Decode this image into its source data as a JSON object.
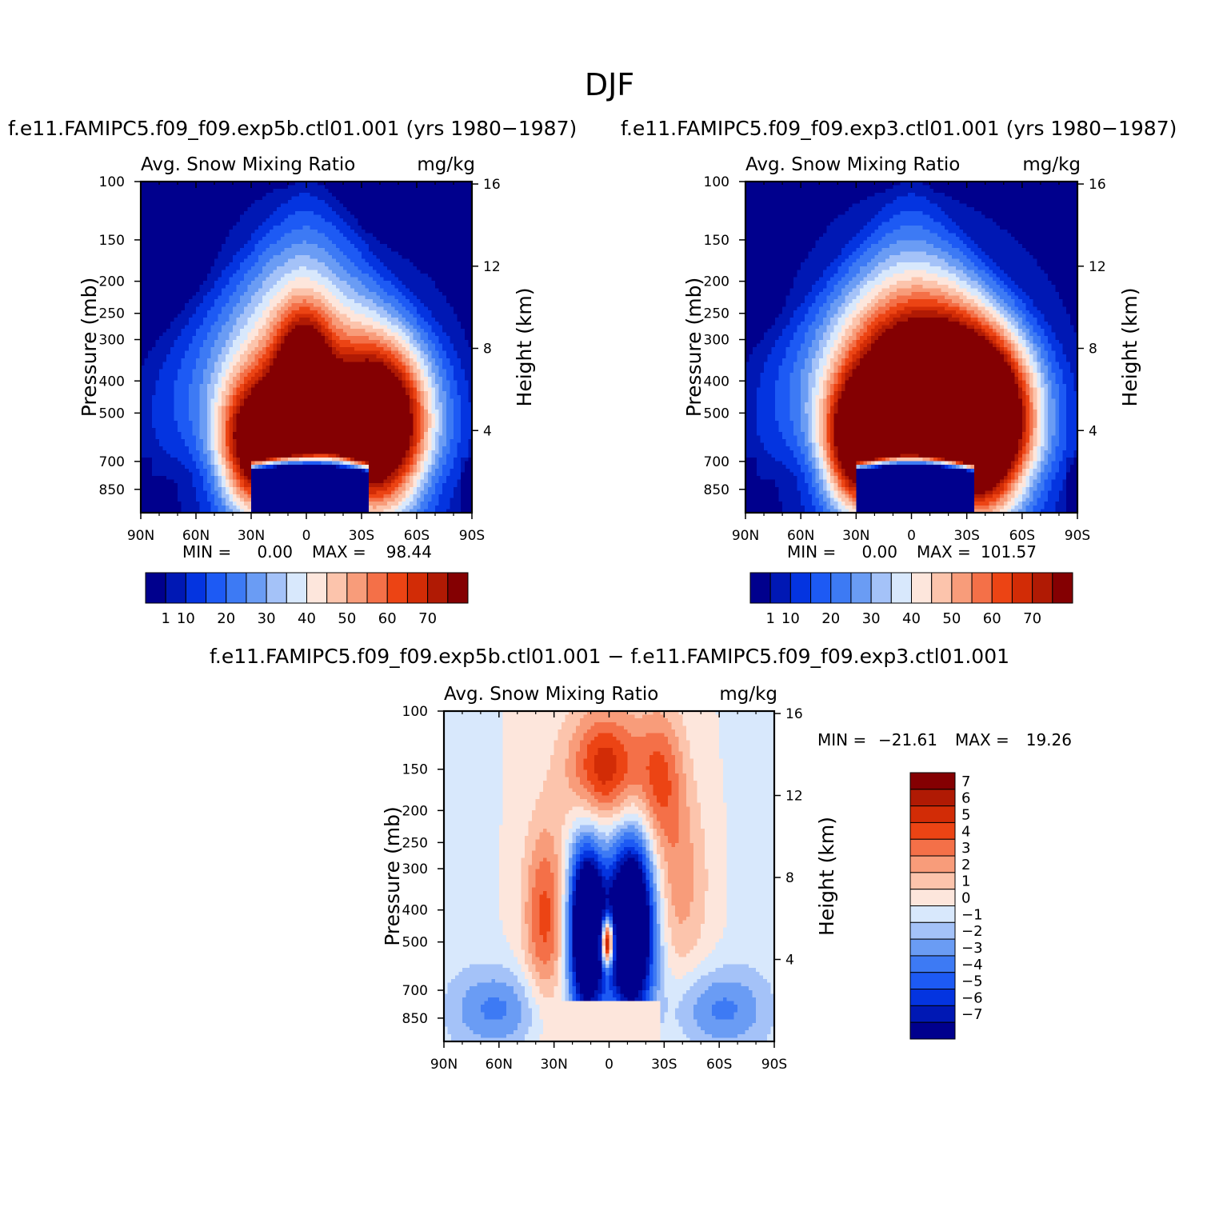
{
  "figure": {
    "title": "DJF",
    "panel_left_case": "f.e11.FAMIPC5.f09_f09.exp5b.ctl01.001 (yrs 1980−1987)",
    "panel_right_case": "f.e11.FAMIPC5.f09_f09.exp3.ctl01.001 (yrs 1980−1987)",
    "diff_case": "f.e11.FAMIPC5.f09_f09.exp5b.ctl01.001 − f.e11.FAMIPC5.f09_f09.exp3.ctl01.001"
  },
  "chart_data": [
    {
      "id": "exp5b",
      "type": "heatmap",
      "title": "Avg. Snow Mixing Ratio",
      "units": "mg/kg",
      "xlabel": "",
      "ylabel": "Pressure (mb)",
      "ylabel_right": "Height (km)",
      "x_ticks": [
        "90N",
        "60N",
        "30N",
        "0",
        "30S",
        "60S",
        "90S"
      ],
      "x_range": [
        90,
        -90
      ],
      "y_ticks": [
        100,
        150,
        200,
        250,
        300,
        400,
        500,
        700,
        850
      ],
      "y_range": [
        100,
        1000
      ],
      "height_ticks": [
        16,
        12,
        8,
        4
      ],
      "min_label": "MIN =",
      "min_value": "0.00",
      "max_label": "MAX =",
      "max_value": "98.44",
      "colorbar_levels": [
        "1",
        "10",
        "20",
        "30",
        "40",
        "50",
        "60",
        "70"
      ],
      "colors": [
        "#00008d",
        "#0018b4",
        "#0434e0",
        "#1d5af4",
        "#3d7af4",
        "#6a9cf4",
        "#a4c2f8",
        "#d8e8fc",
        "#fde6dc",
        "#fcc4ac",
        "#f89c7a",
        "#f47048",
        "#ec4414",
        "#d22c06",
        "#b01a04",
        "#840002"
      ],
      "blobs": [
        {
          "lat": 27,
          "p": 640,
          "slat": 15,
          "sp": 210,
          "v": 75
        },
        {
          "lat": -38,
          "p": 570,
          "slat": 19,
          "sp": 230,
          "v": 100
        },
        {
          "lat": 1,
          "p": 430,
          "slat": 10,
          "sp": 150,
          "v": 64
        },
        {
          "lat": 6,
          "p": 460,
          "slat": 22,
          "sp": 260,
          "v": 32
        }
      ]
    },
    {
      "id": "exp3",
      "type": "heatmap",
      "title": "Avg. Snow Mixing Ratio",
      "units": "mg/kg",
      "xlabel": "",
      "ylabel": "Pressure (mb)",
      "ylabel_right": "Height (km)",
      "x_ticks": [
        "90N",
        "60N",
        "30N",
        "0",
        "30S",
        "60S",
        "90S"
      ],
      "x_range": [
        90,
        -90
      ],
      "y_ticks": [
        100,
        150,
        200,
        250,
        300,
        400,
        500,
        700,
        850
      ],
      "y_range": [
        100,
        1000
      ],
      "height_ticks": [
        16,
        12,
        8,
        4
      ],
      "min_label": "MIN =",
      "min_value": "0.00",
      "max_label": "MAX =",
      "max_value": "101.57",
      "colorbar_levels": [
        "1",
        "10",
        "20",
        "30",
        "40",
        "50",
        "60",
        "70"
      ],
      "colors": [
        "#00008d",
        "#0018b4",
        "#0434e0",
        "#1d5af4",
        "#3d7af4",
        "#6a9cf4",
        "#a4c2f8",
        "#d8e8fc",
        "#fde6dc",
        "#fcc4ac",
        "#f89c7a",
        "#f47048",
        "#ec4414",
        "#d22c06",
        "#b01a04",
        "#840002"
      ],
      "blobs": [
        {
          "lat": 28,
          "p": 640,
          "slat": 14,
          "sp": 200,
          "v": 72
        },
        {
          "lat": -38,
          "p": 570,
          "slat": 19,
          "sp": 230,
          "v": 100
        },
        {
          "lat": -8,
          "p": 440,
          "slat": 26,
          "sp": 190,
          "v": 66
        },
        {
          "lat": 5,
          "p": 470,
          "slat": 26,
          "sp": 260,
          "v": 30
        }
      ]
    },
    {
      "id": "diff",
      "type": "heatmap",
      "title": "Avg. Snow Mixing Ratio",
      "units": "mg/kg",
      "xlabel": "",
      "ylabel": "Pressure (mb)",
      "ylabel_right": "Height (km)",
      "x_ticks": [
        "90N",
        "60N",
        "30N",
        "0",
        "30S",
        "60S",
        "90S"
      ],
      "x_range": [
        90,
        -90
      ],
      "y_ticks": [
        100,
        150,
        200,
        250,
        300,
        400,
        500,
        700,
        850
      ],
      "y_range": [
        100,
        1000
      ],
      "height_ticks": [
        16,
        12,
        8,
        4
      ],
      "min_label": "MIN =",
      "min_value": "−21.61",
      "max_label": "MAX =",
      "max_value": "19.26",
      "colorbar_levels": [
        "7",
        "6",
        "5",
        "4",
        "3",
        "2",
        "1",
        "0",
        "−1",
        "−2",
        "−3",
        "−4",
        "−5",
        "−6",
        "−7"
      ],
      "colors": [
        "#840002",
        "#b01a04",
        "#d22c06",
        "#ec4414",
        "#f47048",
        "#f89c7a",
        "#fcc4ac",
        "#fde6dc",
        "#d8e8fc",
        "#a4c2f8",
        "#6a9cf4",
        "#3d7af4",
        "#1d5af4",
        "#0434e0",
        "#0018b4",
        "#00008d"
      ]
    }
  ]
}
